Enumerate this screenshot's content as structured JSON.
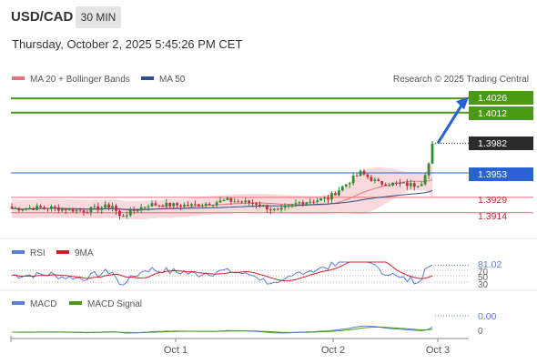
{
  "header": {
    "symbol": "USD/CAD",
    "timeframe": "30 MIN",
    "datetime": "Thursday, October 2, 2025 5:45:26 PM CET"
  },
  "legend": {
    "ma20": "MA 20 + Bollinger Bands",
    "ma50": "MA 50",
    "credit": "Research © 2025 Trading Central",
    "rsi": "RSI",
    "rsi_ma": "9MA",
    "macd": "MACD",
    "macd_signal": "MACD Signal"
  },
  "colors": {
    "up": "#2e8b2e",
    "down": "#c0303a",
    "resistance": "#4a9a16",
    "pivot": "#2a62d4",
    "support": "#e86a78",
    "band_fill": "#f7d6d9",
    "ma20": "#e5737e",
    "ma50": "#2a4e8e",
    "arrow": "#2a62d4",
    "rsi": "#5b7fd6",
    "rsi_ma": "#d0202a",
    "macd": "#5b7fd6",
    "macd_signal": "#4a9a16"
  },
  "chart_data": {
    "type": "candlestick",
    "ylim": [
      1.3895,
      1.4035
    ],
    "x_ticks": [
      "Oct 1",
      "Oct 2",
      "Oct 3"
    ],
    "levels": [
      {
        "value": 1.4026,
        "label": "1.4026",
        "kind": "resistance"
      },
      {
        "value": 1.4012,
        "label": "1.4012",
        "kind": "resistance"
      },
      {
        "value": 1.3982,
        "label": "1.3982",
        "kind": "current"
      },
      {
        "value": 1.3953,
        "label": "1.3953",
        "kind": "pivot"
      },
      {
        "value": 1.3929,
        "label": "1.3929",
        "kind": "support"
      },
      {
        "value": 1.3914,
        "label": "1.3914",
        "kind": "support"
      }
    ],
    "rsi": {
      "label": "81.02",
      "levels": [
        "70",
        "50",
        "30"
      ],
      "ylim": [
        20,
        90
      ]
    },
    "macd": {
      "label": "0.00",
      "zero": "0"
    }
  }
}
